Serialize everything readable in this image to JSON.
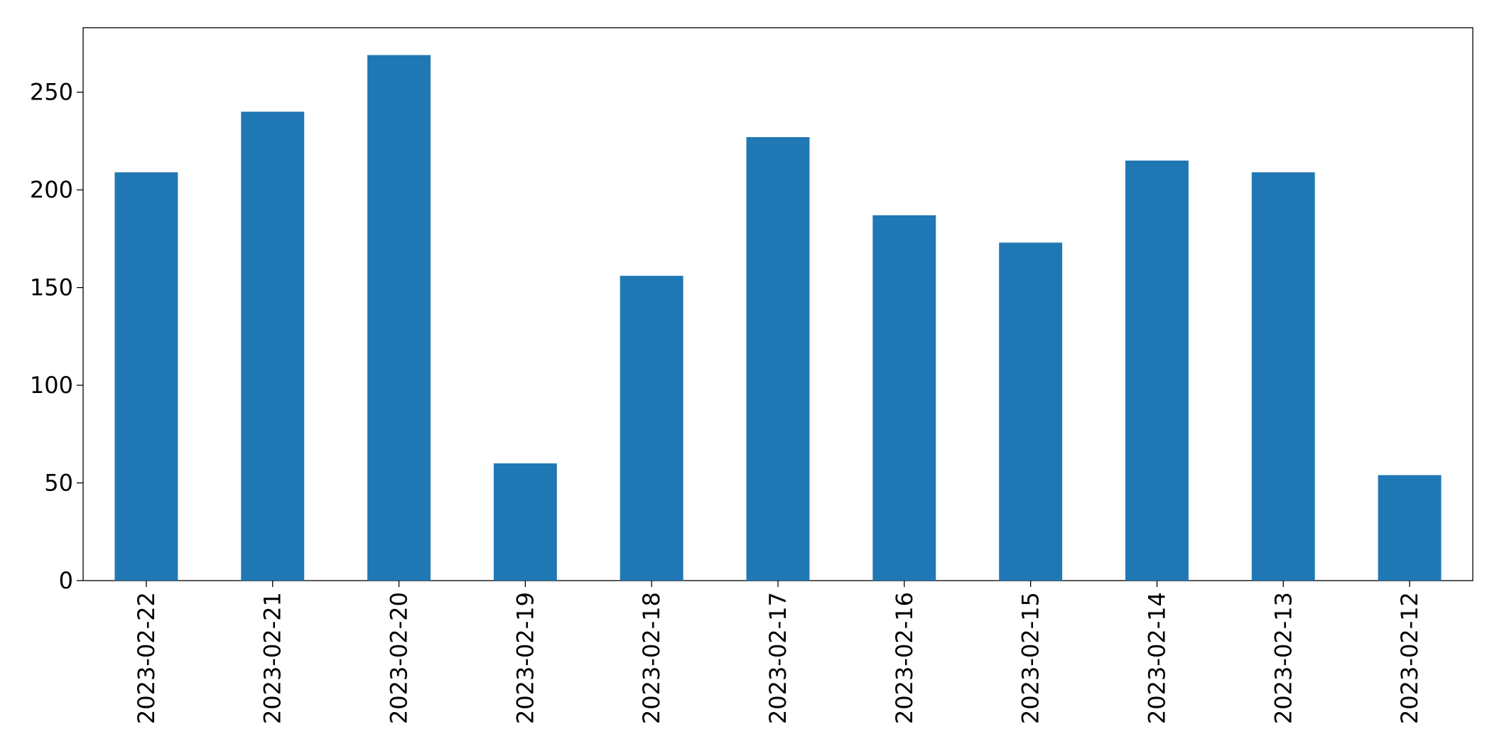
{
  "chart_data": {
    "type": "bar",
    "categories": [
      "2023-02-22",
      "2023-02-21",
      "2023-02-20",
      "2023-02-19",
      "2023-02-18",
      "2023-02-17",
      "2023-02-16",
      "2023-02-15",
      "2023-02-14",
      "2023-02-13",
      "2023-02-12"
    ],
    "values": [
      209,
      240,
      269,
      60,
      156,
      227,
      187,
      173,
      215,
      209,
      54
    ],
    "color": "#1f77b4",
    "ylim": [
      0,
      283
    ],
    "yticks": [
      0,
      50,
      100,
      150,
      200,
      250
    ],
    "grid": false
  }
}
